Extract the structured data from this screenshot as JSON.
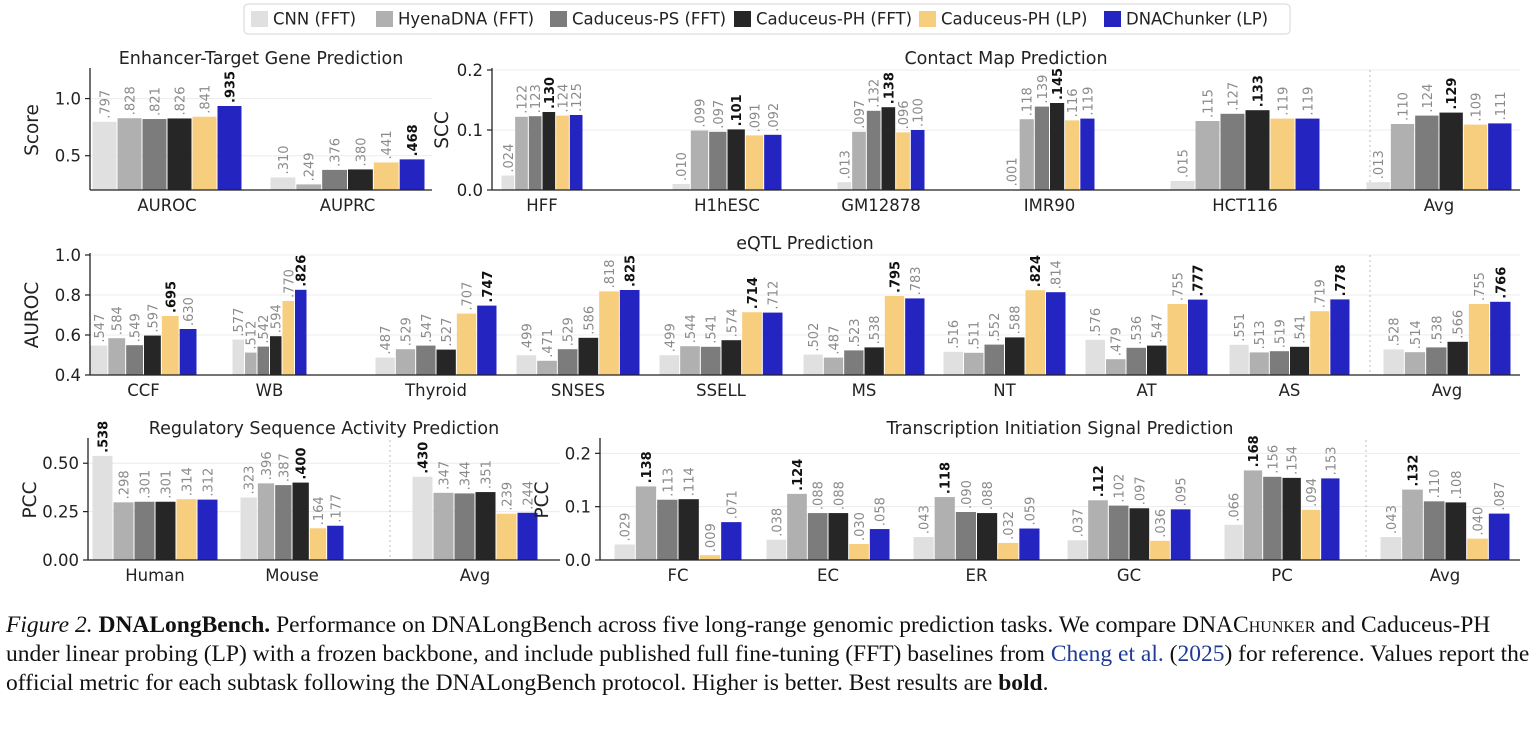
{
  "legend": [
    {
      "name": "CNN (FFT)",
      "color": "#e0e0e0"
    },
    {
      "name": "HyenaDNA (FFT)",
      "color": "#b0b0b0"
    },
    {
      "name": "Caduceus-PS (FFT)",
      "color": "#7c7c7c"
    },
    {
      "name": "Caduceus-PH (FFT)",
      "color": "#262626"
    },
    {
      "name": "Caduceus-PH (LP)",
      "color": "#f7cd7e"
    },
    {
      "name": "DNAChunker (LP)",
      "color": "#2424c0"
    }
  ],
  "chart_data": [
    {
      "type": "bar",
      "title": "Enhancer-Target Gene Prediction",
      "ylabel": "Score",
      "ylim": [
        0.2,
        1.25
      ],
      "yticks": [
        "0.5",
        "1.0"
      ],
      "categories": [
        "AUROC",
        "AUPRC"
      ],
      "values": [
        [
          0.797,
          0.828,
          0.821,
          0.826,
          0.841,
          0.935
        ],
        [
          0.31,
          0.249,
          0.376,
          0.38,
          0.441,
          0.468
        ]
      ],
      "labels": [
        [
          ".797",
          ".828",
          ".821",
          ".826",
          ".841",
          ".935"
        ],
        [
          ".310",
          ".249",
          ".376",
          ".380",
          ".441",
          ".468"
        ]
      ],
      "bold": [
        [
          false,
          false,
          false,
          false,
          false,
          true
        ],
        [
          false,
          false,
          false,
          false,
          false,
          true
        ]
      ]
    },
    {
      "type": "bar",
      "title": "Contact Map Prediction",
      "ylabel": "SCC",
      "ylim": [
        0,
        0.2
      ],
      "yticks": [
        "0.0",
        "0.1",
        "0.2"
      ],
      "categories": [
        "HFF",
        "H1hESC",
        "GM12878",
        "IMR90",
        "HCT116",
        "Avg"
      ],
      "values": [
        [
          0.024,
          0.122,
          0.123,
          0.13,
          0.124,
          0.125
        ],
        [
          0.01,
          0.099,
          0.097,
          0.101,
          0.091,
          0.092
        ],
        [
          0.013,
          0.097,
          0.132,
          0.138,
          0.096,
          0.1
        ],
        [
          0.001,
          0.118,
          0.139,
          0.145,
          0.116,
          0.119
        ],
        [
          0.015,
          0.115,
          0.127,
          0.133,
          0.119,
          0.119
        ],
        [
          0.013,
          0.11,
          0.124,
          0.129,
          0.109,
          0.111
        ]
      ],
      "labels": [
        [
          ".024",
          ".122",
          ".123",
          ".130",
          ".124",
          ".125"
        ],
        [
          ".010",
          ".099",
          ".097",
          ".101",
          ".091",
          ".092"
        ],
        [
          ".013",
          ".097",
          ".132",
          ".138",
          ".096",
          ".100"
        ],
        [
          ".001",
          ".118",
          ".139",
          ".145",
          ".116",
          ".119"
        ],
        [
          ".015",
          ".115",
          ".127",
          ".133",
          ".119",
          ".119"
        ],
        [
          ".013",
          ".110",
          ".124",
          ".129",
          ".109",
          ".111"
        ]
      ],
      "bold": [
        [
          false,
          false,
          false,
          true,
          false,
          false
        ],
        [
          false,
          false,
          false,
          true,
          false,
          false
        ],
        [
          false,
          false,
          false,
          true,
          false,
          false
        ],
        [
          false,
          false,
          false,
          true,
          false,
          false
        ],
        [
          false,
          false,
          false,
          true,
          false,
          false
        ],
        [
          false,
          false,
          false,
          true,
          false,
          false
        ]
      ]
    },
    {
      "type": "bar",
      "title": "eQTL Prediction",
      "ylabel": "AUROC",
      "ylim": [
        0.4,
        1.0
      ],
      "yticks": [
        "0.4",
        "0.6",
        "0.8",
        "1.0"
      ],
      "categories": [
        "CCF",
        "WB",
        "Thyroid",
        "SNSES",
        "SSELL",
        "MS",
        "NT",
        "AT",
        "AS",
        "Avg"
      ],
      "values": [
        [
          0.547,
          0.584,
          0.549,
          0.597,
          0.695,
          0.63
        ],
        [
          0.577,
          0.512,
          0.542,
          0.594,
          0.77,
          0.826
        ],
        [
          0.487,
          0.529,
          0.547,
          0.527,
          0.707,
          0.747
        ],
        [
          0.499,
          0.471,
          0.529,
          0.586,
          0.818,
          0.825
        ],
        [
          0.499,
          0.544,
          0.541,
          0.574,
          0.714,
          0.712
        ],
        [
          0.502,
          0.487,
          0.523,
          0.538,
          0.795,
          0.783
        ],
        [
          0.516,
          0.511,
          0.552,
          0.588,
          0.824,
          0.814
        ],
        [
          0.576,
          0.479,
          0.536,
          0.547,
          0.755,
          0.777
        ],
        [
          0.551,
          0.513,
          0.519,
          0.541,
          0.719,
          0.778
        ],
        [
          0.528,
          0.514,
          0.538,
          0.566,
          0.755,
          0.766
        ]
      ],
      "labels": [
        [
          ".547",
          ".584",
          ".549",
          ".597",
          ".695",
          ".630"
        ],
        [
          ".577",
          ".512",
          ".542",
          ".594",
          ".770",
          ".826"
        ],
        [
          ".487",
          ".529",
          ".547",
          ".527",
          ".707",
          ".747"
        ],
        [
          ".499",
          ".471",
          ".529",
          ".586",
          ".818",
          ".825"
        ],
        [
          ".499",
          ".544",
          ".541",
          ".574",
          ".714",
          ".712"
        ],
        [
          ".502",
          ".487",
          ".523",
          ".538",
          ".795",
          ".783"
        ],
        [
          ".516",
          ".511",
          ".552",
          ".588",
          ".824",
          ".814"
        ],
        [
          ".576",
          ".479",
          ".536",
          ".547",
          ".755",
          ".777"
        ],
        [
          ".551",
          ".513",
          ".519",
          ".541",
          ".719",
          ".778"
        ],
        [
          ".528",
          ".514",
          ".538",
          ".566",
          ".755",
          ".766"
        ]
      ],
      "bold": [
        [
          false,
          false,
          false,
          false,
          true,
          false
        ],
        [
          false,
          false,
          false,
          false,
          false,
          true
        ],
        [
          false,
          false,
          false,
          false,
          false,
          true
        ],
        [
          false,
          false,
          false,
          false,
          false,
          true
        ],
        [
          false,
          false,
          false,
          false,
          true,
          false
        ],
        [
          false,
          false,
          false,
          false,
          true,
          false
        ],
        [
          false,
          false,
          false,
          false,
          true,
          false
        ],
        [
          false,
          false,
          false,
          false,
          false,
          true
        ],
        [
          false,
          false,
          false,
          false,
          false,
          true
        ],
        [
          false,
          false,
          false,
          false,
          false,
          true
        ]
      ]
    },
    {
      "type": "bar",
      "title": "Regulatory Sequence Activity Prediction",
      "ylabel": "PCC",
      "ylim": [
        0,
        0.62
      ],
      "yticks": [
        "0.00",
        "0.25",
        "0.50"
      ],
      "categories": [
        "Human",
        "Mouse",
        "Avg"
      ],
      "values": [
        [
          0.538,
          0.298,
          0.301,
          0.301,
          0.314,
          0.312
        ],
        [
          0.323,
          0.396,
          0.387,
          0.4,
          0.164,
          0.177
        ],
        [
          0.43,
          0.347,
          0.344,
          0.351,
          0.239,
          0.244
        ]
      ],
      "labels": [
        [
          ".538",
          ".298",
          ".301",
          ".301",
          ".314",
          ".312"
        ],
        [
          ".323",
          ".396",
          ".387",
          ".400",
          ".164",
          ".177"
        ],
        [
          ".430",
          ".347",
          ".344",
          ".351",
          ".239",
          ".244"
        ]
      ],
      "bold": [
        [
          true,
          false,
          false,
          false,
          false,
          false
        ],
        [
          false,
          false,
          false,
          true,
          false,
          false
        ],
        [
          true,
          false,
          false,
          false,
          false,
          false
        ]
      ]
    },
    {
      "type": "bar",
      "title": "Transcription Initiation Signal Prediction",
      "ylabel": "PCC",
      "ylim": [
        0,
        0.225
      ],
      "yticks": [
        "0.0",
        "0.1",
        "0.2"
      ],
      "categories": [
        "FC",
        "EC",
        "ER",
        "GC",
        "PC",
        "Avg"
      ],
      "values": [
        [
          0.029,
          0.138,
          0.113,
          0.114,
          0.009,
          0.071
        ],
        [
          0.038,
          0.124,
          0.088,
          0.088,
          0.03,
          0.058
        ],
        [
          0.043,
          0.118,
          0.09,
          0.088,
          0.032,
          0.059
        ],
        [
          0.037,
          0.112,
          0.102,
          0.097,
          0.036,
          0.095
        ],
        [
          0.066,
          0.168,
          0.156,
          0.154,
          0.094,
          0.153
        ],
        [
          0.043,
          0.132,
          0.11,
          0.108,
          0.04,
          0.087
        ]
      ],
      "labels": [
        [
          ".029",
          ".138",
          ".113",
          ".114",
          ".009",
          ".071"
        ],
        [
          ".038",
          ".124",
          ".088",
          ".088",
          ".030",
          ".058"
        ],
        [
          ".043",
          ".118",
          ".090",
          ".088",
          ".032",
          ".059"
        ],
        [
          ".037",
          ".112",
          ".102",
          ".097",
          ".036",
          ".095"
        ],
        [
          ".066",
          ".168",
          ".156",
          ".154",
          ".094",
          ".153"
        ],
        [
          ".043",
          ".132",
          ".110",
          ".108",
          ".040",
          ".087"
        ]
      ],
      "bold": [
        [
          false,
          true,
          false,
          false,
          false,
          false
        ],
        [
          false,
          true,
          false,
          false,
          false,
          false
        ],
        [
          false,
          true,
          false,
          false,
          false,
          false
        ],
        [
          false,
          true,
          false,
          false,
          false,
          false
        ],
        [
          false,
          true,
          false,
          false,
          false,
          false
        ],
        [
          false,
          true,
          false,
          false,
          false,
          false
        ]
      ]
    }
  ],
  "caption": {
    "label": "Figure 2.",
    "title": "DNALongBench.",
    "text1": "Performance on DNALongBench across five long-range genomic prediction tasks. We compare DNA",
    "smallcaps": "Chunker",
    "text2": "and Caduceus-PH under linear probing (LP) with a frozen backbone, and include published full fine-tuning (FFT) baselines from",
    "cite_author": "Cheng et al.",
    "cite_open": "(",
    "cite_year": "2025",
    "cite_close": ")",
    "text3": "for reference. Values report the official metric for each subtask following the DNALongBench protocol. Higher is better. Best results are",
    "bold_word": "bold",
    "end": "."
  }
}
